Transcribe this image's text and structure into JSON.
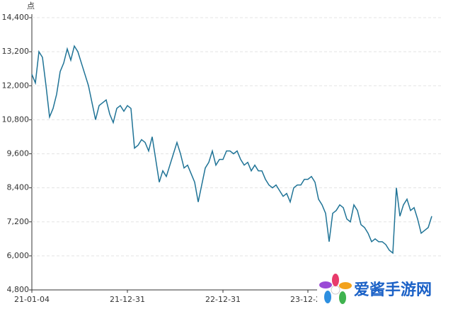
{
  "chart_data": {
    "type": "line",
    "y_label": "点",
    "categories": [
      "21-01-04",
      null,
      null,
      null,
      null,
      null,
      null,
      null,
      null,
      null,
      null,
      null,
      null,
      null,
      null,
      null,
      null,
      null,
      null,
      null,
      null,
      null,
      null,
      null,
      null,
      null,
      null,
      "21-12-31",
      null,
      null,
      null,
      null,
      null,
      null,
      null,
      null,
      null,
      null,
      null,
      null,
      null,
      null,
      null,
      null,
      null,
      null,
      null,
      null,
      null,
      null,
      null,
      null,
      null,
      null,
      "22-12-31",
      null,
      null,
      null,
      null,
      null,
      null,
      null,
      null,
      null,
      null,
      null,
      null,
      null,
      null,
      null,
      null,
      null,
      null,
      null,
      null,
      null,
      null,
      null,
      "23-12-29",
      null,
      null,
      null,
      null,
      null,
      null,
      null,
      null,
      null,
      null,
      null,
      null,
      null,
      null,
      null,
      null,
      null,
      null,
      null,
      null,
      null,
      null,
      null,
      null,
      null,
      null,
      null,
      null,
      null,
      null,
      null,
      null,
      null,
      null,
      null
    ],
    "values": [
      12400,
      12100,
      13200,
      13000,
      12000,
      10900,
      11200,
      11700,
      12500,
      12800,
      13300,
      12900,
      13400,
      13200,
      12800,
      12400,
      12000,
      11400,
      10800,
      11300,
      11400,
      11500,
      11000,
      10700,
      11200,
      11300,
      11100,
      11300,
      11200,
      9800,
      9900,
      10100,
      10000,
      9700,
      10200,
      9400,
      8600,
      9000,
      8800,
      9200,
      9600,
      10000,
      9600,
      9100,
      9200,
      8900,
      8600,
      7900,
      8500,
      9100,
      9300,
      9700,
      9200,
      9400,
      9400,
      9700,
      9700,
      9600,
      9700,
      9400,
      9200,
      9300,
      9000,
      9200,
      9000,
      9000,
      8700,
      8500,
      8400,
      8500,
      8300,
      8100,
      8200,
      7900,
      8400,
      8500,
      8500,
      8700,
      8700,
      8800,
      8600,
      8000,
      7800,
      7500,
      6500,
      7500,
      7600,
      7800,
      7700,
      7300,
      7200,
      7800,
      7600,
      7100,
      7000,
      6800,
      6500,
      6600,
      6500,
      6500,
      6400,
      6200,
      6100,
      8400,
      7400,
      7800,
      8000,
      7600,
      7700,
      7300,
      6800,
      6900,
      7000,
      7400
    ],
    "color": "#1f7396",
    "ylim": [
      4800,
      14400
    ],
    "yticks": [
      {
        "value": 4800,
        "label": "4,800"
      },
      {
        "value": 6000,
        "label": "6,000"
      },
      {
        "value": 7200,
        "label": "7,200"
      },
      {
        "value": 8400,
        "label": "8,400"
      },
      {
        "value": 9600,
        "label": "9,600"
      },
      {
        "value": 10800,
        "label": "10,800"
      },
      {
        "value": 12000,
        "label": "12,000"
      },
      {
        "value": 13200,
        "label": "13,200"
      },
      {
        "value": 14400,
        "label": "14,400"
      }
    ],
    "grid": true
  },
  "watermark": "爱酱手游网"
}
